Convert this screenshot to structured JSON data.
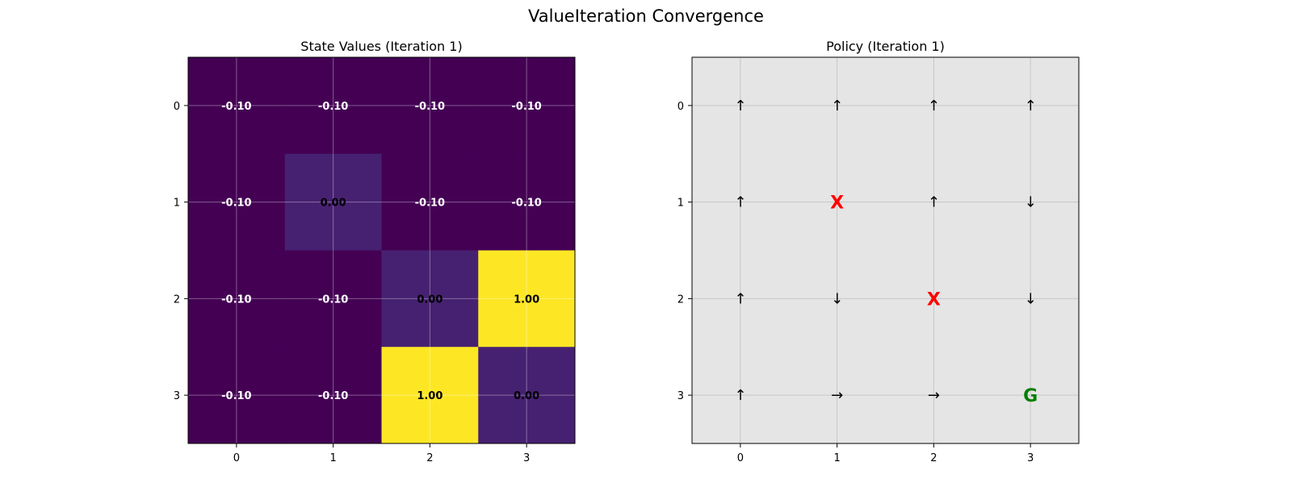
{
  "figure_title": "ValueIteration Convergence",
  "chart_data": [
    {
      "type": "heatmap",
      "title": "State Values (Iteration 1)",
      "x_ticks": [
        "0",
        "1",
        "2",
        "3"
      ],
      "y_ticks": [
        "0",
        "1",
        "2",
        "3"
      ],
      "colormap": "viridis",
      "vmin": -0.1,
      "vmax": 1.0,
      "grid": true,
      "values": [
        [
          -0.1,
          -0.1,
          -0.1,
          -0.1
        ],
        [
          -0.1,
          0.0,
          -0.1,
          -0.1
        ],
        [
          -0.1,
          -0.1,
          0.0,
          1.0
        ],
        [
          -0.1,
          -0.1,
          1.0,
          0.0
        ]
      ],
      "labels": [
        [
          "-0.10",
          "-0.10",
          "-0.10",
          "-0.10"
        ],
        [
          "-0.10",
          "0.00",
          "-0.10",
          "-0.10"
        ],
        [
          "-0.10",
          "-0.10",
          "0.00",
          "1.00"
        ],
        [
          "-0.10",
          "-0.10",
          "1.00",
          "0.00"
        ]
      ]
    },
    {
      "type": "table",
      "title": "Policy (Iteration 1)",
      "x_ticks": [
        "0",
        "1",
        "2",
        "3"
      ],
      "y_ticks": [
        "0",
        "1",
        "2",
        "3"
      ],
      "grid": true,
      "background": "#e5e5e5",
      "cells": [
        [
          "↑",
          "↑",
          "↑",
          "↑"
        ],
        [
          "↑",
          "X",
          "↑",
          "↓"
        ],
        [
          "↑",
          "↓",
          "X",
          "↓"
        ],
        [
          "↑",
          "→",
          "→",
          "G"
        ]
      ],
      "special_colors": {
        "X": "#ff0000",
        "G": "#008000"
      },
      "arrow_color": "#000000"
    }
  ]
}
